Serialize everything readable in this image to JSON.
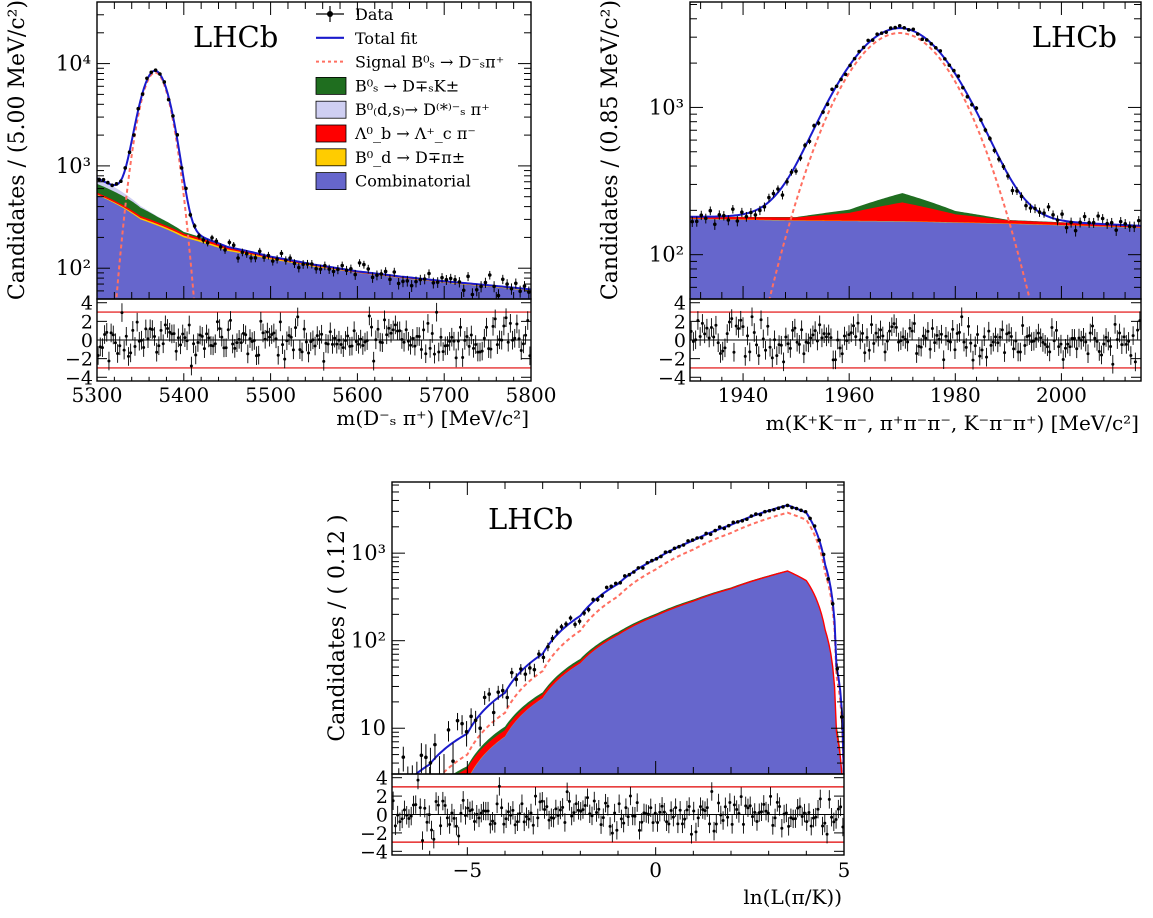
{
  "colors": {
    "data": "#000000",
    "total_fit": "#1a1acc",
    "signal": "#ff6f61",
    "bs_dk": "#1f6e1f",
    "bdsdsstar": "#cfcff2",
    "lambda": "#ff0000",
    "bd_dpi": "#ffcc00",
    "combinatorial": "#6666cc",
    "pull_band": "#e00000"
  },
  "legend": [
    {
      "key": "data",
      "label": "Data",
      "style": "marker"
    },
    {
      "key": "total_fit",
      "label": "Total fit",
      "style": "line"
    },
    {
      "key": "signal",
      "label": "Signal B⁰ₛ → D⁻ₛπ⁺",
      "style": "dash"
    },
    {
      "key": "bs_dk",
      "label": "B⁰ₛ → D∓ₛK±",
      "style": "box"
    },
    {
      "key": "bdsdsstar",
      "label": "B⁰₍d,s₎→ D⁽*⁾⁻ₛ π⁺",
      "style": "box"
    },
    {
      "key": "lambda",
      "label": "Λ⁰_b → Λ⁺_c π⁻",
      "style": "box"
    },
    {
      "key": "bd_dpi",
      "label": "B⁰_d → D∓π±",
      "style": "box"
    },
    {
      "key": "combinatorial",
      "label": "Combinatorial",
      "style": "box"
    }
  ],
  "chart_data": [
    {
      "id": "bs_mass",
      "type": "stacked-area-with-points",
      "watermark": "LHCb",
      "ylabel": "Candidates / (5.00 MeV/c²)",
      "xlabel": "m(D⁻ₛ π⁺) [MeV/c²]",
      "xlim": [
        5300,
        5800
      ],
      "ylim": [
        50,
        40000
      ],
      "yscale": "log",
      "xticks": [
        5300,
        5400,
        5500,
        5600,
        5700,
        5800
      ],
      "yticks": [
        {
          "v": 100,
          "label": "10²"
        },
        {
          "v": 1000,
          "label": "10³"
        },
        {
          "v": 10000,
          "label": "10⁴"
        }
      ],
      "signal": {
        "mu": 5367,
        "sigma": 14,
        "peak": 8200,
        "tail": 0.35
      },
      "components": {
        "combinatorial": [
          [
            5300,
            520
          ],
          [
            5350,
            300
          ],
          [
            5400,
            200
          ],
          [
            5450,
            148
          ],
          [
            5500,
            122
          ],
          [
            5550,
            103
          ],
          [
            5600,
            90
          ],
          [
            5650,
            80
          ],
          [
            5700,
            72
          ],
          [
            5750,
            66
          ],
          [
            5800,
            60
          ]
        ],
        "bd_dpi": [
          [
            5300,
            8
          ],
          [
            5350,
            10
          ],
          [
            5400,
            8
          ],
          [
            5450,
            5
          ],
          [
            5500,
            3
          ],
          [
            5550,
            2
          ],
          [
            5600,
            1
          ],
          [
            5800,
            1
          ]
        ],
        "lambda": [
          [
            5300,
            10
          ],
          [
            5350,
            8
          ],
          [
            5400,
            6
          ],
          [
            5450,
            5
          ],
          [
            5500,
            3
          ],
          [
            5550,
            2
          ],
          [
            5600,
            1
          ],
          [
            5800,
            1
          ]
        ],
        "bs_dk": [
          [
            5300,
            130
          ],
          [
            5340,
            90
          ],
          [
            5370,
            40
          ],
          [
            5400,
            12
          ],
          [
            5450,
            3
          ],
          [
            5500,
            1
          ],
          [
            5800,
            0
          ]
        ],
        "bdsdsstar": [
          [
            5300,
            90
          ],
          [
            5320,
            60
          ],
          [
            5340,
            25
          ],
          [
            5360,
            6
          ],
          [
            5380,
            1
          ],
          [
            5800,
            0
          ]
        ]
      },
      "pull": {
        "ylim": [
          -4.4,
          4.4
        ],
        "yticks": [
          -4,
          -2,
          0,
          2,
          4
        ],
        "band": 3,
        "n": 100,
        "seed": 11
      }
    },
    {
      "id": "ds_mass",
      "type": "stacked-area-with-points",
      "watermark": "LHCb",
      "ylabel": "Candidates / (0.85 MeV/c²)",
      "xlabel": "m(K⁺K⁻π⁻, π⁺π⁻π⁻, K⁻π⁻π⁺) [MeV/c²]",
      "xlim": [
        1930,
        2015
      ],
      "ylim": [
        50,
        5200
      ],
      "yscale": "log",
      "xticks": [
        1940,
        1960,
        1980,
        2000
      ],
      "yticks": [
        {
          "v": 100,
          "label": "10²"
        },
        {
          "v": 1000,
          "label": "10³"
        }
      ],
      "signal": {
        "mu": 1969.5,
        "sigma": 8.5,
        "peak": 3200,
        "tail": 0.25
      },
      "components": {
        "combinatorial": [
          [
            1930,
            175
          ],
          [
            1950,
            170
          ],
          [
            1970,
            168
          ],
          [
            1990,
            162
          ],
          [
            2015,
            152
          ]
        ],
        "bd_dpi": [
          [
            1930,
            1
          ],
          [
            2015,
            1
          ]
        ],
        "lambda": [
          [
            1930,
            3
          ],
          [
            1950,
            6
          ],
          [
            1960,
            20
          ],
          [
            1970,
            55
          ],
          [
            1980,
            20
          ],
          [
            1990,
            6
          ],
          [
            2015,
            2
          ]
        ],
        "bs_dk": [
          [
            1930,
            2
          ],
          [
            1950,
            3
          ],
          [
            1960,
            12
          ],
          [
            1970,
            38
          ],
          [
            1980,
            12
          ],
          [
            1990,
            3
          ],
          [
            2015,
            2
          ]
        ],
        "bdsdsstar": [
          [
            1930,
            0
          ],
          [
            1960,
            0
          ],
          [
            2015,
            0
          ]
        ]
      },
      "pull": {
        "ylim": [
          -4.4,
          4.4
        ],
        "yticks": [
          -4,
          -2,
          0,
          2,
          4
        ],
        "band": 3,
        "n": 100,
        "seed": 23
      }
    },
    {
      "id": "pid",
      "type": "stacked-area-with-points",
      "watermark": "LHCb",
      "ylabel": "Candidates / ( 0.12 )",
      "xlabel": "ln(L(π/K))",
      "xlim": [
        -7,
        5
      ],
      "ylim": [
        3,
        6500
      ],
      "yscale": "log",
      "xticks": [
        {
          "v": -5,
          "label": "−5"
        },
        {
          "v": 0,
          "label": "0"
        },
        {
          "v": 5,
          "label": "5"
        }
      ],
      "yticks": [
        {
          "v": 10,
          "label": "10"
        },
        {
          "v": 100,
          "label": "10²"
        },
        {
          "v": 1000,
          "label": "10³"
        }
      ],
      "signal": {
        "curve": [
          [
            -7,
            0.8
          ],
          [
            -6,
            2
          ],
          [
            -5,
            5
          ],
          [
            -4,
            15
          ],
          [
            -3,
            45
          ],
          [
            -2,
            130
          ],
          [
            -1,
            320
          ],
          [
            0,
            650
          ],
          [
            1,
            1100
          ],
          [
            2,
            1700
          ],
          [
            3,
            2500
          ],
          [
            3.5,
            2900
          ],
          [
            4,
            2400
          ],
          [
            4.5,
            600
          ],
          [
            4.8,
            40
          ],
          [
            5,
            2
          ]
        ]
      },
      "components": {
        "combinatorial": [
          [
            -7,
            0.5
          ],
          [
            -6,
            1.2
          ],
          [
            -5,
            2.5
          ],
          [
            -4,
            8
          ],
          [
            -3,
            22
          ],
          [
            -2,
            55
          ],
          [
            -1,
            115
          ],
          [
            0,
            190
          ],
          [
            1,
            280
          ],
          [
            2,
            390
          ],
          [
            3,
            540
          ],
          [
            3.5,
            620
          ],
          [
            4,
            480
          ],
          [
            4.5,
            130
          ],
          [
            4.8,
            8
          ],
          [
            5,
            0.5
          ]
        ],
        "bd_dpi": [
          [
            -7,
            0.05
          ],
          [
            5,
            0.05
          ]
        ],
        "lambda": [
          [
            -7,
            0.05
          ],
          [
            3,
            4
          ],
          [
            4,
            5
          ],
          [
            5,
            0.05
          ]
        ],
        "bs_dk": [
          [
            -7,
            0.05
          ],
          [
            -5,
            0.3
          ],
          [
            -3,
            2
          ],
          [
            -1,
            8
          ],
          [
            1,
            12
          ],
          [
            3,
            12
          ],
          [
            4,
            9
          ],
          [
            5,
            0.05
          ]
        ],
        "bdsdsstar": [
          [
            -7,
            0
          ],
          [
            5,
            0
          ]
        ]
      },
      "pull": {
        "ylim": [
          -4.4,
          4.4
        ],
        "yticks": [
          -4,
          -2,
          0,
          2,
          4
        ],
        "band": 3,
        "n": 100,
        "seed": 37
      }
    }
  ]
}
